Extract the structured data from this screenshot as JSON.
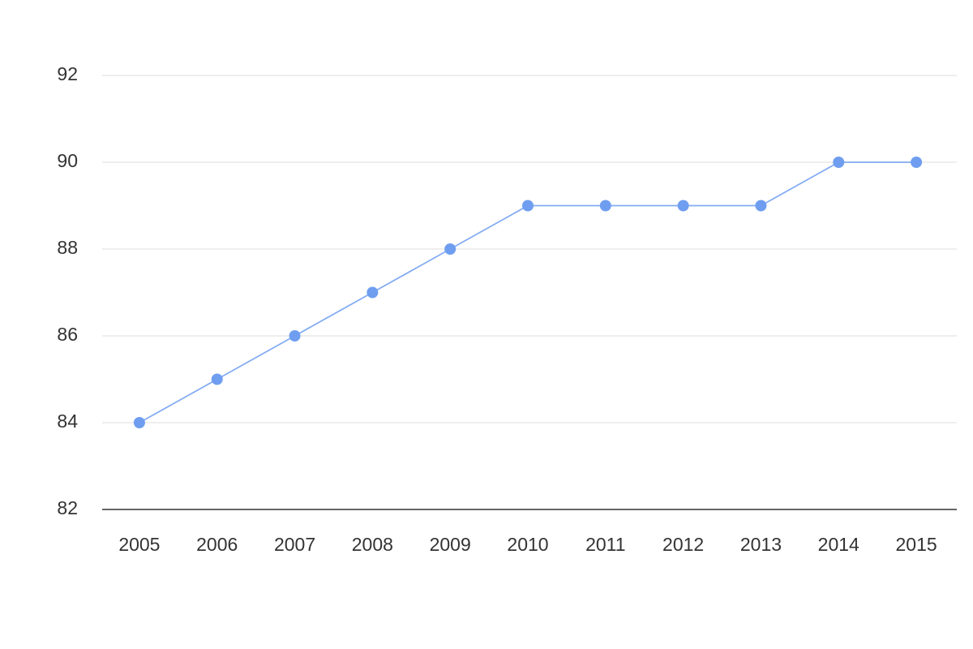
{
  "chart_data": {
    "type": "line",
    "categories": [
      "2005",
      "2006",
      "2007",
      "2008",
      "2009",
      "2010",
      "2011",
      "2012",
      "2013",
      "2014",
      "2015"
    ],
    "series": [
      {
        "color": "#6f9ef0",
        "values": [
          84,
          85,
          86,
          87,
          88,
          89,
          89,
          89,
          89,
          90,
          90
        ]
      }
    ],
    "ylim": [
      82,
      92
    ],
    "yticks": [
      82,
      84,
      86,
      88,
      90,
      92
    ],
    "grid": true
  }
}
